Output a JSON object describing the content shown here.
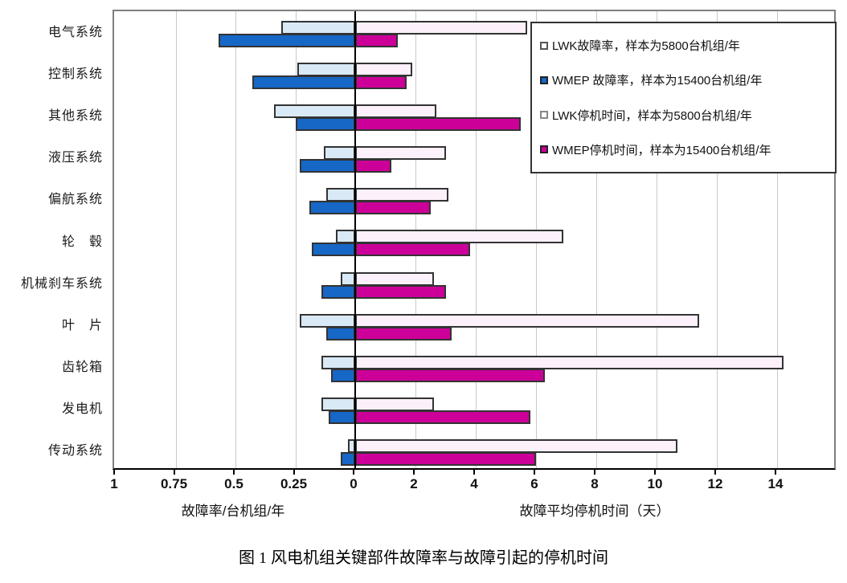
{
  "figure": {
    "caption": "图 1  风电机组关键部件故障率与故障引起的停机时间"
  },
  "legend": {
    "items": [
      {
        "label": "LWK故障率，样本为5800台机组/年",
        "swatch_fill": "#ffffff",
        "swatch_border": "#555555"
      },
      {
        "label": "WMEP 故障率，样本为15400台机组/年",
        "swatch_fill": "#1667c6",
        "swatch_border": "#222222"
      },
      {
        "label": "LWK停机时间，样本为5800台机组/年",
        "swatch_fill": "#ffffff",
        "swatch_border": "#888888"
      },
      {
        "label": "WMEP停机时间，样本为15400台机组/年",
        "swatch_fill": "#cc0099",
        "swatch_border": "#222222"
      }
    ]
  },
  "chart_data": {
    "type": "bar",
    "orientation": "horizontal-diverging",
    "grid": true,
    "legend_position": "top-right",
    "categories": [
      "电气系统",
      "控制系统",
      "其他系统",
      "液压系统",
      "偏航系统",
      "轮　毂",
      "机械刹车系统",
      "叶　片",
      "齿轮箱",
      "发电机",
      "传动系统"
    ],
    "series": [
      {
        "name": "LWK故障率，样本为5800台机组/年",
        "side": "left",
        "row": "top",
        "color": "#d9eaf6",
        "values": [
          0.31,
          0.24,
          0.34,
          0.13,
          0.12,
          0.08,
          0.06,
          0.23,
          0.14,
          0.14,
          0.03
        ]
      },
      {
        "name": "WMEP故障率，样本为15400台机组/年",
        "side": "left",
        "row": "bottom",
        "color": "#1667c6",
        "values": [
          0.57,
          0.43,
          0.25,
          0.23,
          0.19,
          0.18,
          0.14,
          0.12,
          0.1,
          0.11,
          0.06
        ]
      },
      {
        "name": "LWK停机时间，样本为5800台机组/年",
        "side": "right",
        "row": "top",
        "color": "#fcf1fb",
        "values": [
          5.7,
          1.9,
          2.7,
          3.0,
          3.1,
          6.9,
          2.6,
          11.4,
          14.2,
          2.6,
          10.7
        ]
      },
      {
        "name": "WMEP停机时间，样本为15400台机组/年",
        "side": "right",
        "row": "bottom",
        "color": "#cc0099",
        "values": [
          1.4,
          1.7,
          5.5,
          1.2,
          2.5,
          3.8,
          3.0,
          3.2,
          6.3,
          5.8,
          6.0
        ]
      }
    ],
    "left_axis": {
      "label": "故障率/台机组/年",
      "ticks": [
        1,
        0.75,
        0.5,
        0.25,
        0
      ],
      "max": 1.0
    },
    "right_axis": {
      "label": "故障平均停机时间（天）",
      "ticks": [
        2,
        4,
        6,
        8,
        10,
        12,
        14
      ],
      "max": 16
    },
    "colors": {
      "zero_axis": "#000000",
      "gridline": "#c9c9c9",
      "frame": "#7f7f7f",
      "bar_border": "#333333"
    }
  }
}
